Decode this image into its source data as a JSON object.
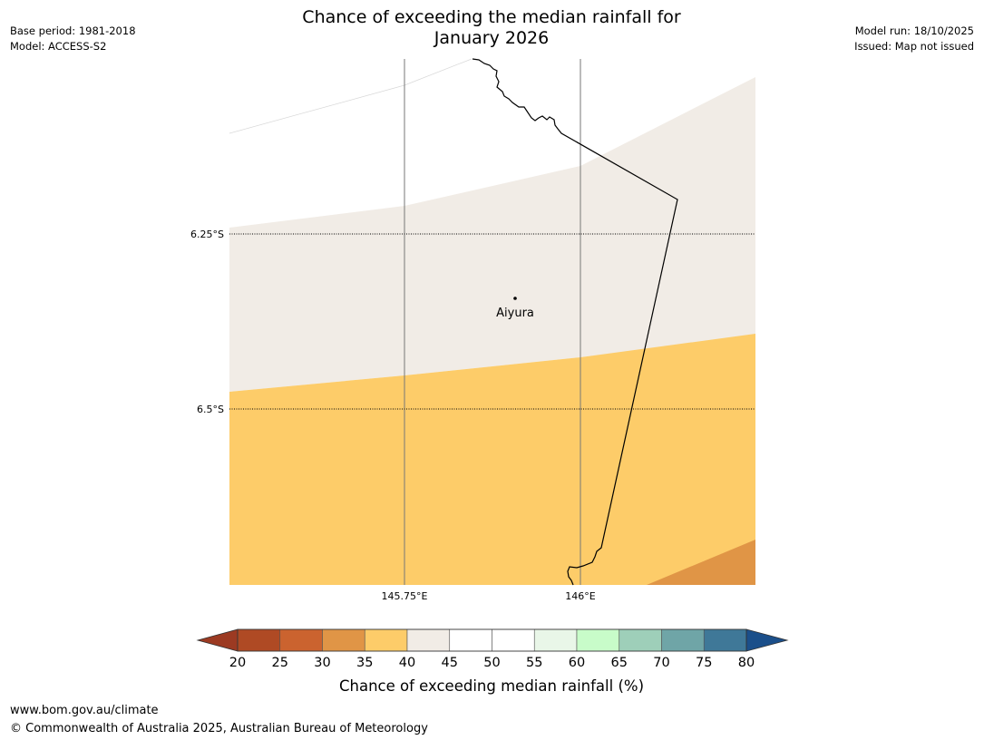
{
  "header": {
    "title_line1": "Chance of exceeding the median rainfall for",
    "title_line2": "January 2026",
    "base_period": "Base period: 1981-2018",
    "model": "Model: ACCESS-S2",
    "model_run": "Model run: 18/10/2025",
    "issued": "Issued: Map not issued"
  },
  "map": {
    "lat_labels": [
      "6.25°S",
      "6.5°S"
    ],
    "lon_labels": [
      "145.75°E",
      "146°E"
    ],
    "place": {
      "name": "Aiyura"
    },
    "colors": {
      "band_35_40": "#fdcc69",
      "band_40_45": "#f1ece6",
      "band_30_35": "#e09546",
      "border": "#000000"
    }
  },
  "legend": {
    "title": "Chance of exceeding median rainfall (%)",
    "ticks": [
      "20",
      "25",
      "30",
      "35",
      "40",
      "45",
      "50",
      "55",
      "60",
      "65",
      "70",
      "75",
      "80"
    ],
    "colors": [
      "#af4a24",
      "#cb632f",
      "#e09546",
      "#fdcc69",
      "#f1ece6",
      "#ffffff",
      "#ffffff",
      "#e9f6e8",
      "#c8fcc9",
      "#9ecfb9",
      "#6fa5a7",
      "#3f7898"
    ],
    "under_color": "#9c3a22",
    "over_color": "#1b4f8a"
  },
  "footer": {
    "url": "www.bom.gov.au/climate",
    "copyright": "© Commonwealth of Australia 2025, Australian Bureau of Meteorology"
  }
}
